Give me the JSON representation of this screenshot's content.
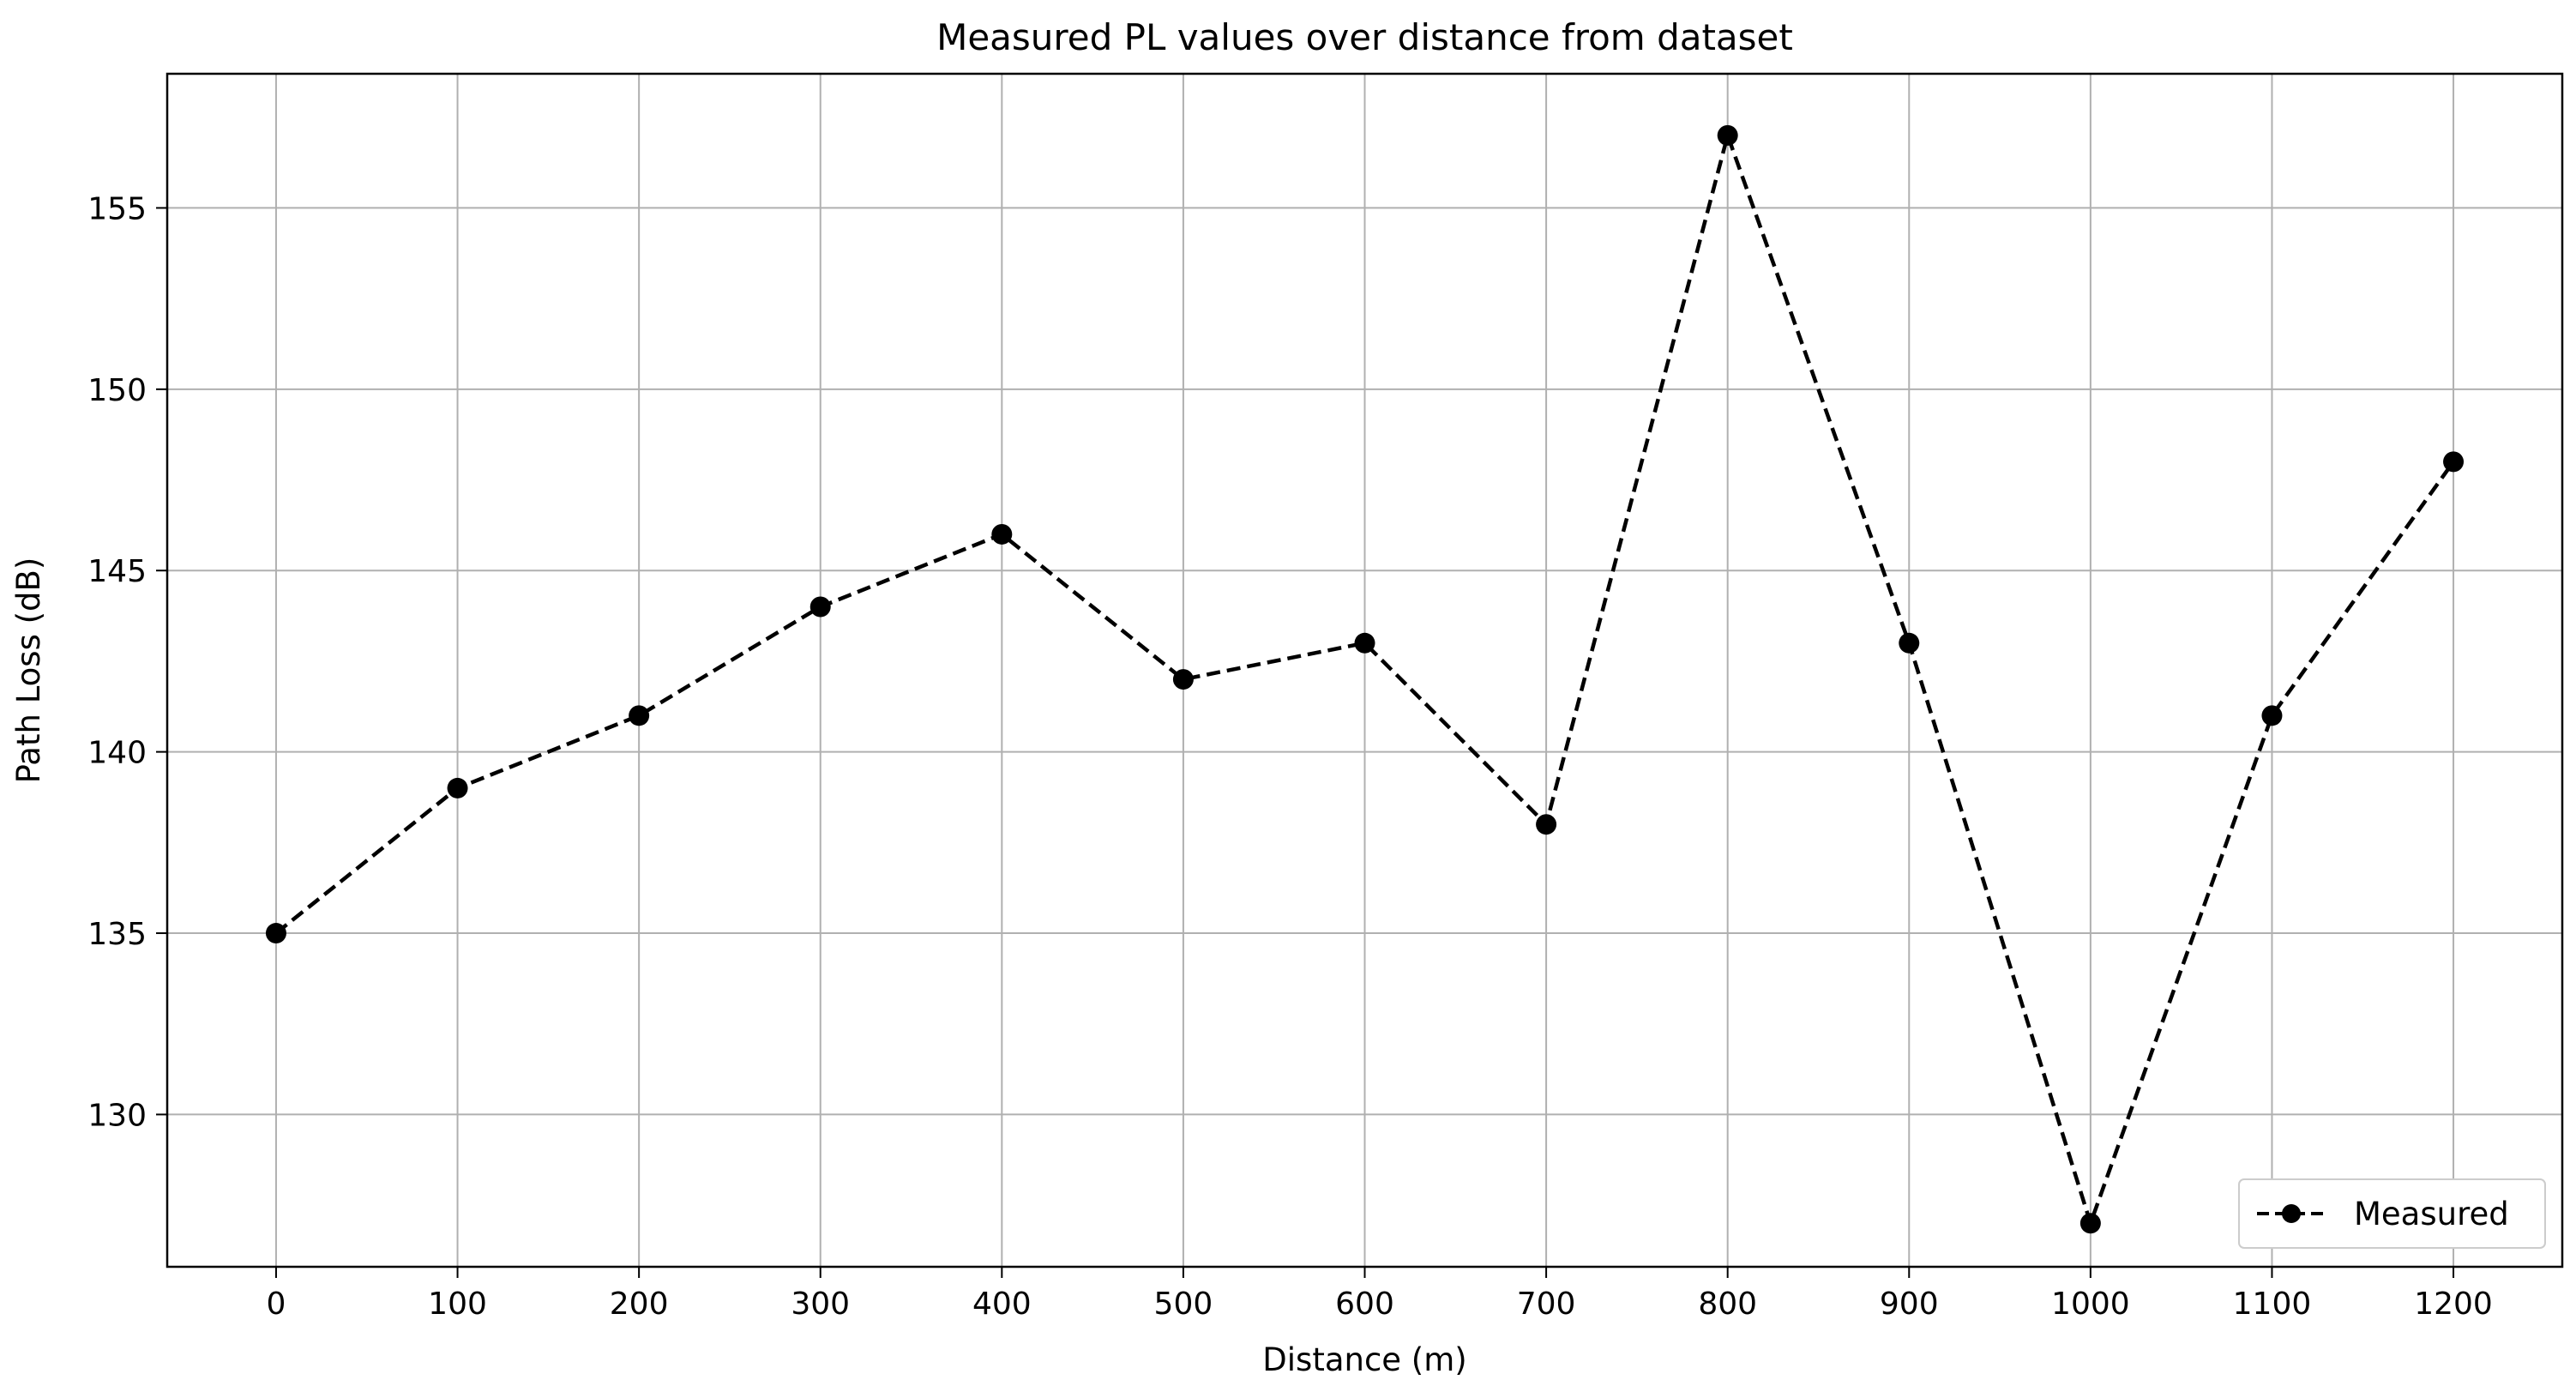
{
  "chart_data": {
    "type": "line",
    "title": "Measured PL values over distance from dataset",
    "xlabel": "Distance (m)",
    "ylabel": "Path Loss (dB)",
    "xlim": [
      -60,
      1260
    ],
    "ylim": [
      125.8,
      158.7
    ],
    "xticks": [
      0,
      100,
      200,
      300,
      400,
      500,
      600,
      700,
      800,
      900,
      1000,
      1100,
      1200
    ],
    "yticks": [
      130,
      135,
      140,
      145,
      150,
      155
    ],
    "grid": true,
    "legend_position": "lower-right",
    "series": [
      {
        "name": "Measured",
        "color": "#000000",
        "line_style": "dashed",
        "marker": "circle",
        "x": [
          0,
          100,
          200,
          300,
          400,
          500,
          600,
          700,
          800,
          900,
          1000,
          1100,
          1200
        ],
        "y": [
          135,
          139,
          141,
          144,
          146,
          142,
          143,
          138,
          157,
          143,
          127,
          141,
          148
        ]
      }
    ]
  }
}
